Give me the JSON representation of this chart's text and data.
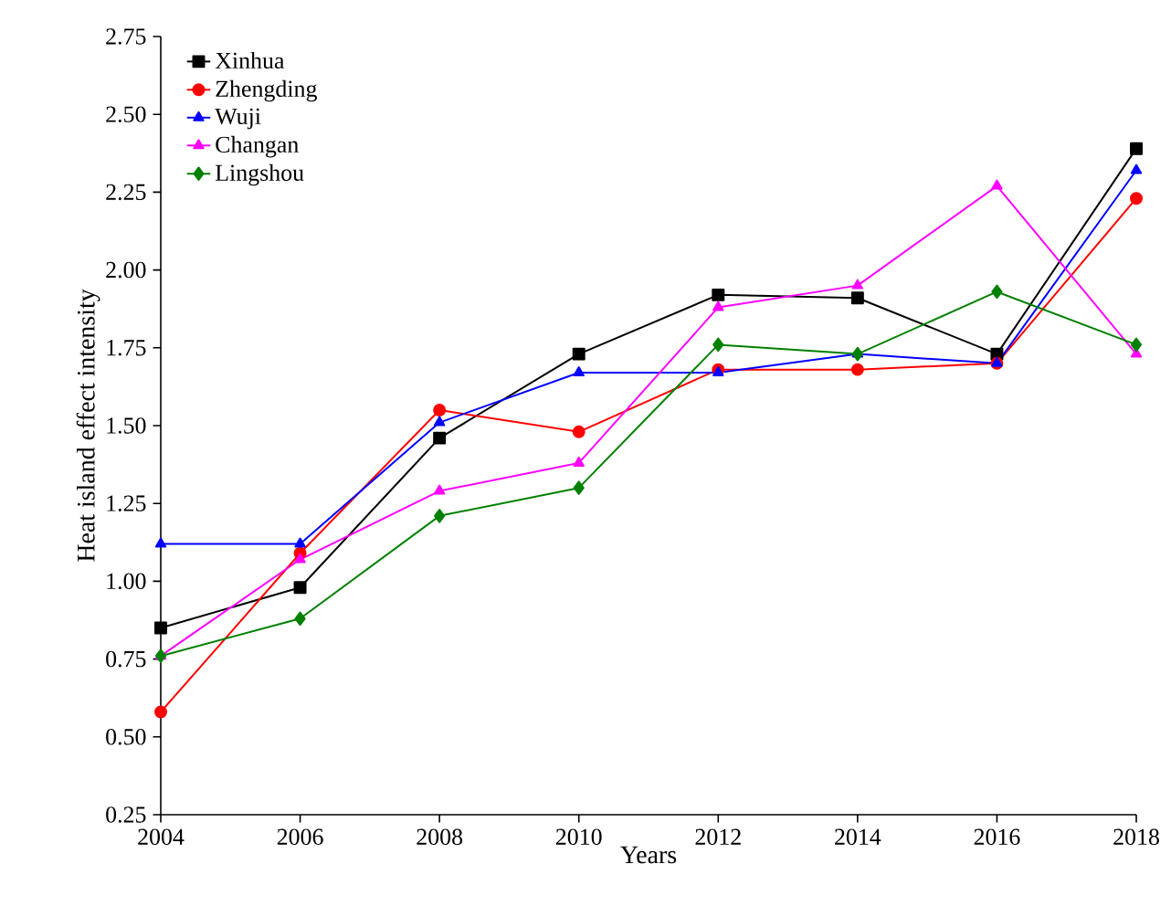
{
  "chart_data": {
    "type": "line",
    "xlabel": "Years",
    "ylabel": "Heat island effect intensity",
    "x": [
      2004,
      2006,
      2008,
      2010,
      2012,
      2014,
      2016,
      2018
    ],
    "series": [
      {
        "name": "Xinhua",
        "color": "#000000",
        "marker": "square",
        "values": [
          0.85,
          0.98,
          1.46,
          1.73,
          1.92,
          1.91,
          1.73,
          2.39
        ]
      },
      {
        "name": "Zhengding",
        "color": "#ff0000",
        "marker": "circle",
        "values": [
          0.58,
          1.09,
          1.55,
          1.48,
          1.68,
          1.68,
          1.7,
          2.23
        ]
      },
      {
        "name": "Wuji",
        "color": "#0000ff",
        "marker": "triangle",
        "values": [
          1.12,
          1.12,
          1.51,
          1.67,
          1.67,
          1.73,
          1.7,
          2.32
        ]
      },
      {
        "name": "Changan",
        "color": "#ff00ff",
        "marker": "triangle-down",
        "values": [
          0.76,
          1.07,
          1.29,
          1.38,
          1.88,
          1.95,
          2.27,
          1.73
        ]
      },
      {
        "name": "Lingshou",
        "color": "#008000",
        "marker": "diamond",
        "values": [
          0.76,
          0.88,
          1.21,
          1.3,
          1.76,
          1.73,
          1.93,
          1.76
        ]
      }
    ],
    "xlim": [
      2004,
      2018
    ],
    "xticks": [
      2004,
      2006,
      2008,
      2010,
      2012,
      2014,
      2016,
      2018
    ],
    "ylim": [
      0.25,
      2.75
    ],
    "yticks": [
      {
        "value": 0.25,
        "label": "0.25"
      },
      {
        "value": 0.5,
        "label": "0.50"
      },
      {
        "value": 0.75,
        "label": "0.75"
      },
      {
        "value": 1,
        "label": "1.00"
      },
      {
        "value": 1.25,
        "label": "1.25"
      },
      {
        "value": 1.5,
        "label": "1.50"
      },
      {
        "value": 1.75,
        "label": "1.75"
      },
      {
        "value": 2,
        "label": "2.00"
      },
      {
        "value": 2.25,
        "label": "2.25"
      },
      {
        "value": 2.5,
        "label": "2.50"
      },
      {
        "value": 2.75,
        "label": "2.75"
      }
    ],
    "grid": false,
    "legend": "top left",
    "line_style": "solid"
  }
}
